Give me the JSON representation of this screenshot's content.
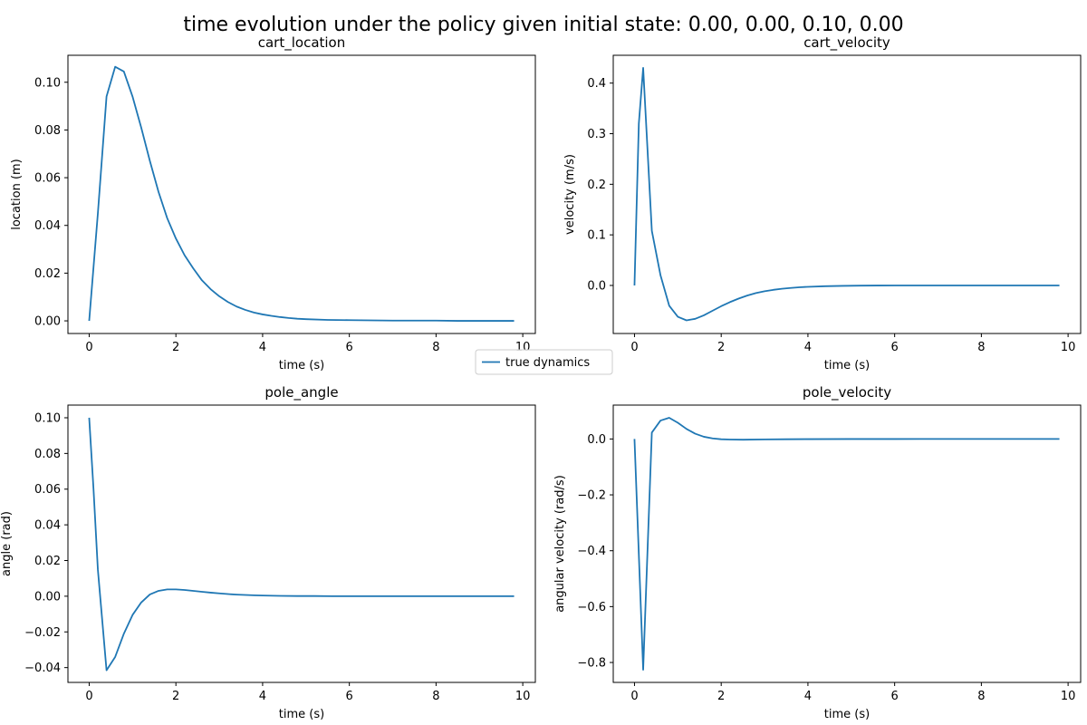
{
  "figure": {
    "title": "time evolution under the policy given initial state: 0.00, 0.00, 0.10, 0.00",
    "legend": {
      "label": "true dynamics",
      "color": "#1f77b4",
      "placement": "center"
    }
  },
  "chart_data": [
    {
      "type": "line",
      "title": "cart_location",
      "xlabel": "time (s)",
      "ylabel": "location (m)",
      "xlim": [
        -0.49,
        10.29
      ],
      "ylim": [
        -0.0053,
        0.1113
      ],
      "xticks": [
        0,
        2,
        4,
        6,
        8,
        10
      ],
      "yticks": [
        0.0,
        0.02,
        0.04,
        0.06,
        0.08,
        0.1
      ],
      "ytick_decimals": 2,
      "series": [
        {
          "name": "true dynamics",
          "color": "#1f77b4",
          "x": [
            0.0,
            0.2,
            0.4,
            0.6,
            0.8,
            1.0,
            1.2,
            1.4,
            1.6,
            1.8,
            2.0,
            2.2,
            2.4,
            2.6,
            2.8,
            3.0,
            3.2,
            3.4,
            3.6,
            3.8,
            4.0,
            4.2,
            4.4,
            4.6,
            4.8,
            5.0,
            5.5,
            6.0,
            6.5,
            7.0,
            7.5,
            8.0,
            8.5,
            9.0,
            9.4,
            9.8
          ],
          "y": [
            0.0,
            0.045,
            0.094,
            0.1065,
            0.1045,
            0.094,
            0.081,
            0.067,
            0.054,
            0.043,
            0.0345,
            0.0275,
            0.022,
            0.017,
            0.0133,
            0.0103,
            0.0079,
            0.006,
            0.0046,
            0.0035,
            0.0027,
            0.0021,
            0.0016,
            0.0012,
            0.0009,
            0.0007,
            0.0004,
            0.0003,
            0.0002,
            0.0001,
            0.0001,
            0.0001,
            0.0,
            0.0,
            0.0,
            0.0
          ]
        }
      ]
    },
    {
      "type": "line",
      "title": "cart_velocity",
      "xlabel": "time (s)",
      "ylabel": "velocity (m/s)",
      "xlim": [
        -0.49,
        10.29
      ],
      "ylim": [
        -0.095,
        0.455
      ],
      "xticks": [
        0,
        2,
        4,
        6,
        8,
        10
      ],
      "yticks": [
        0.0,
        0.1,
        0.2,
        0.3,
        0.4
      ],
      "ytick_decimals": 1,
      "series": [
        {
          "name": "true dynamics",
          "color": "#1f77b4",
          "x": [
            0.0,
            0.1,
            0.2,
            0.4,
            0.6,
            0.8,
            1.0,
            1.2,
            1.4,
            1.6,
            1.8,
            2.0,
            2.2,
            2.4,
            2.6,
            2.8,
            3.0,
            3.2,
            3.4,
            3.6,
            3.8,
            4.0,
            4.4,
            4.8,
            5.2,
            5.6,
            6.0,
            7.0,
            8.0,
            9.0,
            9.8
          ],
          "y": [
            0.0,
            0.32,
            0.43,
            0.108,
            0.02,
            -0.04,
            -0.062,
            -0.069,
            -0.066,
            -0.059,
            -0.05,
            -0.041,
            -0.033,
            -0.026,
            -0.02,
            -0.015,
            -0.0115,
            -0.0087,
            -0.0065,
            -0.0049,
            -0.0036,
            -0.0027,
            -0.0015,
            -0.0008,
            -0.0004,
            -0.0002,
            -0.0001,
            0.0,
            0.0,
            0.0,
            0.0
          ]
        }
      ]
    },
    {
      "type": "line",
      "title": "pole_angle",
      "xlabel": "time (s)",
      "ylabel": "angle (rad)",
      "xlim": [
        -0.49,
        10.29
      ],
      "ylim": [
        -0.0483,
        0.1071
      ],
      "xticks": [
        0,
        2,
        4,
        6,
        8,
        10
      ],
      "yticks": [
        -0.04,
        -0.02,
        0.0,
        0.02,
        0.04,
        0.06,
        0.08,
        0.1
      ],
      "ytick_decimals": 2,
      "series": [
        {
          "name": "true dynamics",
          "color": "#1f77b4",
          "x": [
            0.0,
            0.1,
            0.2,
            0.4,
            0.6,
            0.8,
            1.0,
            1.2,
            1.4,
            1.6,
            1.8,
            2.0,
            2.2,
            2.4,
            2.6,
            2.8,
            3.0,
            3.2,
            3.4,
            3.6,
            3.8,
            4.0,
            4.4,
            4.8,
            5.2,
            5.6,
            6.0,
            7.0,
            8.0,
            9.0,
            9.8
          ],
          "y": [
            0.1,
            0.06,
            0.015,
            -0.0415,
            -0.034,
            -0.021,
            -0.0105,
            -0.0035,
            0.001,
            0.003,
            0.0038,
            0.0038,
            0.0035,
            0.003,
            0.0025,
            0.002,
            0.0016,
            0.0012,
            0.0009,
            0.0007,
            0.0005,
            0.0004,
            0.0002,
            0.0001,
            0.0001,
            0.0,
            0.0,
            0.0,
            0.0,
            0.0,
            0.0
          ]
        }
      ]
    },
    {
      "type": "line",
      "title": "pole_velocity",
      "xlabel": "time (s)",
      "ylabel": "angular velocity (rad/s)",
      "xlim": [
        -0.49,
        10.29
      ],
      "ylim": [
        -0.8713,
        0.1213
      ],
      "xticks": [
        0,
        2,
        4,
        6,
        8,
        10
      ],
      "yticks": [
        -0.8,
        -0.6,
        -0.4,
        -0.2,
        0.0
      ],
      "ytick_decimals": 1,
      "series": [
        {
          "name": "true dynamics",
          "color": "#1f77b4",
          "x": [
            0.0,
            0.2,
            0.4,
            0.6,
            0.8,
            1.0,
            1.2,
            1.4,
            1.6,
            1.8,
            2.0,
            2.2,
            2.5,
            3.0,
            3.5,
            4.0,
            5.0,
            6.0,
            7.0,
            8.0,
            9.0,
            9.8
          ],
          "y": [
            0.0,
            -0.826,
            0.023,
            0.066,
            0.076,
            0.058,
            0.036,
            0.019,
            0.008,
            0.002,
            -0.001,
            -0.002,
            -0.0025,
            -0.0015,
            -0.001,
            -0.0005,
            -0.0002,
            -0.0001,
            0.0,
            0.0,
            0.0,
            0.0
          ]
        }
      ]
    }
  ]
}
